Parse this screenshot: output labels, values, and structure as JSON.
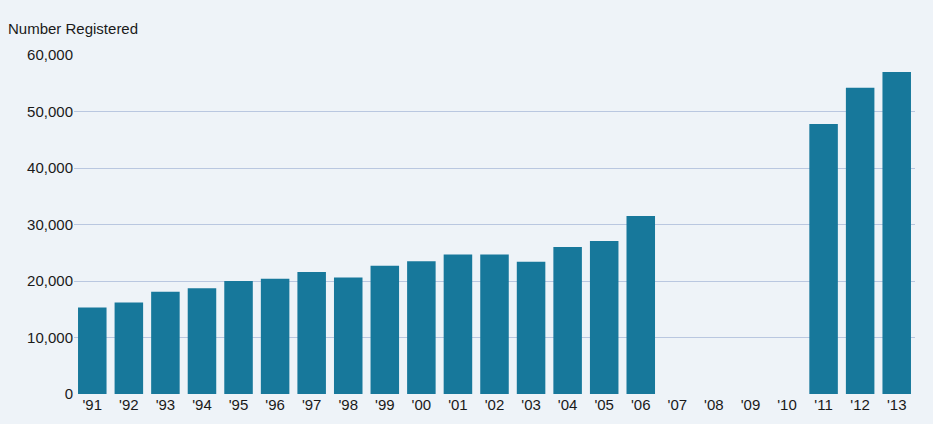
{
  "chart_data": {
    "type": "bar",
    "ylabel": "Number Registered",
    "categories": [
      "'91",
      "'92",
      "'93",
      "'94",
      "'95",
      "'96",
      "'97",
      "'98",
      "'99",
      "'00",
      "'01",
      "'02",
      "'03",
      "'04",
      "'05",
      "'06",
      "'07",
      "'08",
      "'09",
      "'10",
      "'11",
      "'12",
      "'13"
    ],
    "values": [
      15300,
      16200,
      18100,
      18700,
      20000,
      20400,
      21600,
      20600,
      22700,
      23500,
      24700,
      24700,
      23400,
      26000,
      27100,
      31500,
      null,
      null,
      null,
      null,
      47800,
      54200,
      57000
    ],
    "color": "#17789b",
    "ylim": [
      0,
      60000
    ],
    "yticks": [
      0,
      {
        "value": 10000,
        "label": "10,000"
      },
      {
        "value": 20000,
        "label": "20,000"
      },
      {
        "value": 30000,
        "label": "30,000"
      },
      {
        "value": 40000,
        "label": "40,000"
      },
      {
        "value": 50000,
        "label": "50,000"
      },
      {
        "value": 60000,
        "label": "60,000"
      }
    ],
    "grid": true
  }
}
